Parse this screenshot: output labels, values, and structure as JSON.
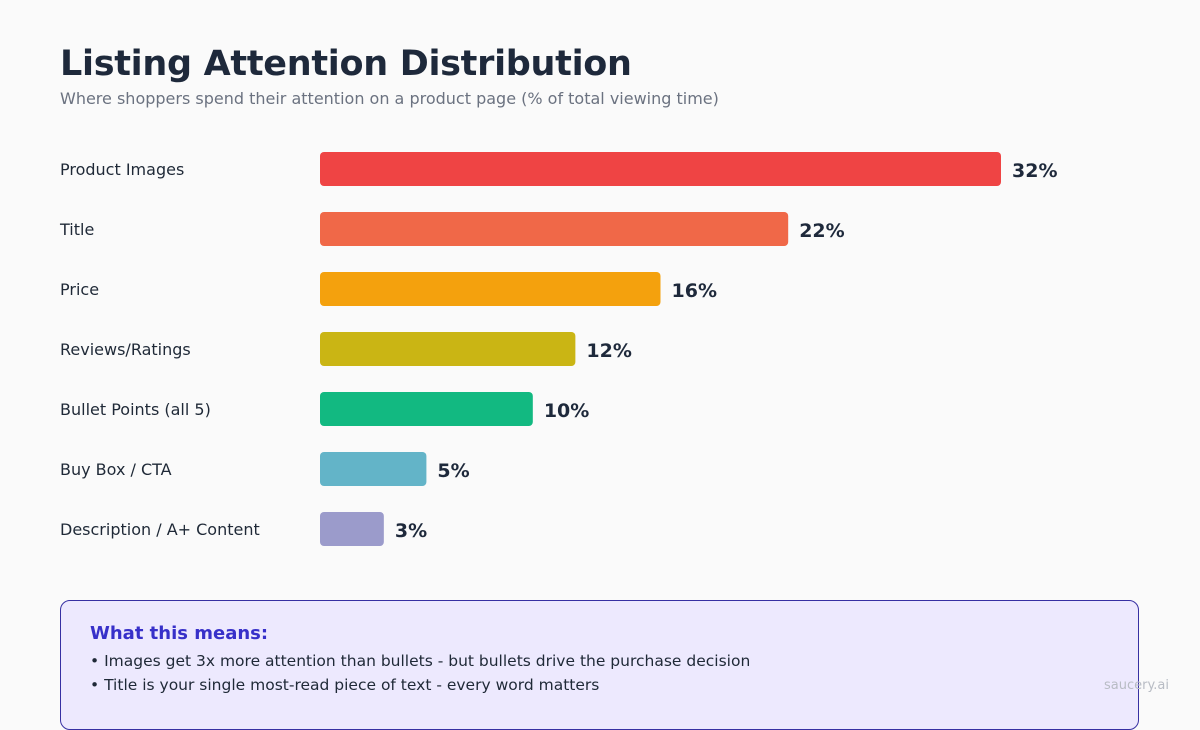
{
  "chart_data": {
    "type": "bar",
    "orientation": "horizontal",
    "title": "Listing Attention Distribution",
    "subtitle": "Where shoppers spend their attention on a product page (% of total viewing time)",
    "categories": [
      "Product Images",
      "Title",
      "Price",
      "Reviews/Ratings",
      "Bullet Points (all 5)",
      "Buy Box / CTA",
      "Description / A+ Content"
    ],
    "values": [
      32,
      22,
      16,
      12,
      10,
      5,
      3
    ],
    "value_labels": [
      "32%",
      "22%",
      "16%",
      "12%",
      "10%",
      "5%",
      "3%"
    ],
    "colors": [
      "#ef4444",
      "#f06848",
      "#f4a10d",
      "#cab514",
      "#12b981",
      "#63b4c8",
      "#9b9bcb"
    ],
    "grid": false,
    "legend": "none"
  },
  "callout": {
    "heading": "What this means:",
    "points": [
      "• Images get 3x more attention than bullets - but bullets drive the purchase decision",
      "• Title is your single most-read piece of text - every word matters"
    ]
  },
  "watermark": "saucery.ai"
}
